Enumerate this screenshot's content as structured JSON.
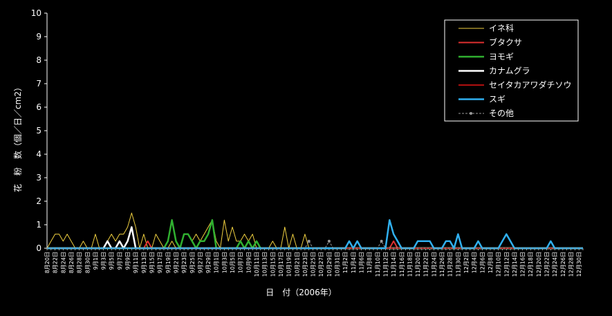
{
  "chart_data": {
    "type": "line",
    "xlabel": "日　付（2006年）",
    "ylabel": "花　粉　数（個／日／cm2）",
    "ylim": [
      0,
      10
    ],
    "yticks": [
      0,
      1,
      2,
      3,
      4,
      5,
      6,
      7,
      8,
      9,
      10
    ],
    "grid": false,
    "legend_position": "top-right",
    "start_date": "8月20日",
    "categories": [
      "8月20日",
      "8月21日",
      "8月22日",
      "8月23日",
      "8月24日",
      "8月25日",
      "8月26日",
      "8月27日",
      "8月28日",
      "8月29日",
      "8月30日",
      "8月31日",
      "9月1日",
      "9月2日",
      "9月3日",
      "9月4日",
      "9月5日",
      "9月6日",
      "9月7日",
      "9月8日",
      "9月9日",
      "9月10日",
      "9月11日",
      "9月12日",
      "9月13日",
      "9月14日",
      "9月15日",
      "9月16日",
      "9月17日",
      "9月18日",
      "9月19日",
      "9月20日",
      "9月21日",
      "9月22日",
      "9月23日",
      "9月24日",
      "9月25日",
      "9月26日",
      "9月27日",
      "9月28日",
      "9月29日",
      "9月30日",
      "10月1日",
      "10月2日",
      "10月3日",
      "10月4日",
      "10月5日",
      "10月6日",
      "10月7日",
      "10月8日",
      "10月9日",
      "10月10日",
      "10月11日",
      "10月12日",
      "10月13日",
      "10月14日",
      "10月15日",
      "10月16日",
      "10月17日",
      "10月18日",
      "10月19日",
      "10月20日",
      "10月21日",
      "10月22日",
      "10月23日",
      "10月24日",
      "10月25日",
      "10月26日",
      "10月27日",
      "10月28日",
      "10月29日",
      "10月30日",
      "10月31日",
      "11月1日",
      "11月2日",
      "11月3日",
      "11月4日",
      "11月5日",
      "11月6日",
      "11月7日",
      "11月8日",
      "11月9日",
      "11月10日",
      "11月11日",
      "11月12日",
      "11月13日",
      "11月14日",
      "11月15日",
      "11月16日",
      "11月17日",
      "11月18日",
      "11月19日",
      "11月20日",
      "11月21日",
      "11月22日",
      "11月23日",
      "11月24日",
      "11月25日",
      "11月26日",
      "11月27日",
      "11月28日",
      "11月29日",
      "11月30日",
      "12月1日",
      "12月2日",
      "12月3日",
      "12月4日",
      "12月5日",
      "12月6日",
      "12月7日",
      "12月8日",
      "12月9日",
      "12月10日",
      "12月11日",
      "12月12日",
      "12月13日",
      "12月14日",
      "12月15日",
      "12月16日",
      "12月17日",
      "12月18日",
      "12月19日",
      "12月20日",
      "12月21日",
      "12月22日",
      "12月23日",
      "12月24日",
      "12月25日",
      "12月26日",
      "12月27日",
      "12月28日",
      "12月29日",
      "12月30日",
      "12月31日"
    ],
    "xtick_labels": [
      "8月20日",
      "8月22日",
      "8月24日",
      "8月26日",
      "8月28日",
      "8月30日",
      "9月1日",
      "9月3日",
      "9月5日",
      "9月7日",
      "9月9日",
      "9月11日",
      "9月13日",
      "9月15日",
      "9月17日",
      "9月19日",
      "9月21日",
      "9月23日",
      "9月25日",
      "9月27日",
      "9月29日",
      "10月1日",
      "10月3日",
      "10月5日",
      "10月7日",
      "10月9日",
      "10月11日",
      "10月13日",
      "10月15日",
      "10月17日",
      "10月19日",
      "10月21日",
      "10月23日",
      "10月25日",
      "10月27日",
      "10月29日",
      "10月31日",
      "11月2日",
      "11月4日",
      "11月6日",
      "11月8日",
      "11月10日",
      "11月12日",
      "11月14日",
      "11月16日",
      "11月18日",
      "11月20日",
      "11月22日",
      "11月24日",
      "11月26日",
      "11月28日",
      "11月30日",
      "12月2日",
      "12月4日",
      "12月6日",
      "12月8日",
      "12月10日",
      "12月12日",
      "12月14日",
      "12月16日",
      "12月18日",
      "12月20日",
      "12月22日",
      "12月24日",
      "12月26日",
      "12月28日",
      "12月30日"
    ],
    "series": [
      {
        "name": "イネ科",
        "color": "#f0d040",
        "width": 1,
        "dash": "",
        "points": [
          [
            "8月20日",
            0
          ],
          [
            "8月21日",
            0.3
          ],
          [
            "8月22日",
            0.6
          ],
          [
            "8月23日",
            0.6
          ],
          [
            "8月24日",
            0.3
          ],
          [
            "8月25日",
            0.6
          ],
          [
            "8月26日",
            0.3
          ],
          [
            "8月27日",
            0
          ],
          [
            "8月28日",
            0
          ],
          [
            "8月29日",
            0.3
          ],
          [
            "8月30日",
            0
          ],
          [
            "8月31日",
            0
          ],
          [
            "9月1日",
            0.6
          ],
          [
            "9月2日",
            0
          ],
          [
            "9月3日",
            0
          ],
          [
            "9月4日",
            0.3
          ],
          [
            "9月5日",
            0.6
          ],
          [
            "9月6日",
            0.3
          ],
          [
            "9月7日",
            0.6
          ],
          [
            "9月8日",
            0.6
          ],
          [
            "9月9日",
            0.9
          ],
          [
            "9月10日",
            1.5
          ],
          [
            "9月11日",
            0.9
          ],
          [
            "9月12日",
            0
          ],
          [
            "9月13日",
            0.6
          ],
          [
            "9月14日",
            0
          ],
          [
            "9月15日",
            0
          ],
          [
            "9月16日",
            0.6
          ],
          [
            "9月17日",
            0.3
          ],
          [
            "9月18日",
            0
          ],
          [
            "9月19日",
            0
          ],
          [
            "9月20日",
            0.3
          ],
          [
            "9月21日",
            0
          ],
          [
            "9月22日",
            0
          ],
          [
            "9月23日",
            0.6
          ],
          [
            "9月24日",
            0.6
          ],
          [
            "9月25日",
            0.3
          ],
          [
            "9月26日",
            0.6
          ],
          [
            "9月27日",
            0.3
          ],
          [
            "9月28日",
            0.6
          ],
          [
            "9月29日",
            0.9
          ],
          [
            "9月30日",
            1.2
          ],
          [
            "10月1日",
            0.3
          ],
          [
            "10月2日",
            0
          ],
          [
            "10月3日",
            1.2
          ],
          [
            "10月4日",
            0.3
          ],
          [
            "10月5日",
            0.9
          ],
          [
            "10月6日",
            0.3
          ],
          [
            "10月7日",
            0.3
          ],
          [
            "10月8日",
            0.6
          ],
          [
            "10月9日",
            0.3
          ],
          [
            "10月10日",
            0.6
          ],
          [
            "10月11日",
            0
          ],
          [
            "10月12日",
            0
          ],
          [
            "10月13日",
            0
          ],
          [
            "10月14日",
            0
          ],
          [
            "10月15日",
            0.3
          ],
          [
            "10月16日",
            0
          ],
          [
            "10月17日",
            0
          ],
          [
            "10月18日",
            0.9
          ],
          [
            "10月19日",
            0
          ],
          [
            "10月20日",
            0.6
          ],
          [
            "10月21日",
            0
          ],
          [
            "10月22日",
            0
          ],
          [
            "10月23日",
            0.6
          ],
          [
            "10月24日",
            0
          ],
          [
            "10月25日",
            0
          ],
          [
            "10月26日",
            0
          ],
          [
            "10月27日",
            0
          ],
          [
            "10月28日",
            0
          ],
          [
            "10月29日",
            0
          ],
          [
            "10月30日",
            0
          ],
          [
            "10月31日",
            0
          ],
          [
            "11月1日",
            0
          ],
          [
            "11月2日",
            0
          ],
          [
            "11月3日",
            0
          ],
          [
            "11月4日",
            0
          ],
          [
            "11月5日",
            0
          ],
          [
            "11月6日",
            0
          ],
          [
            "11月7日",
            0
          ],
          [
            "11月8日",
            0
          ],
          [
            "11月9日",
            0
          ],
          [
            "11月10日",
            0
          ],
          [
            "11月11日",
            0
          ],
          [
            "11月12日",
            0
          ],
          [
            "11月13日",
            0
          ],
          [
            "11月14日",
            0
          ],
          [
            "11月15日",
            0
          ],
          [
            "12月31日",
            0
          ]
        ]
      },
      {
        "name": "ブタクサ",
        "color": "#e03030",
        "width": 2,
        "dash": "",
        "points": [
          [
            "8月20日",
            0
          ],
          [
            "9月13日",
            0
          ],
          [
            "9月14日",
            0.3
          ],
          [
            "9月15日",
            0
          ],
          [
            "11月13日",
            0
          ],
          [
            "11月14日",
            0.3
          ],
          [
            "11月15日",
            0
          ],
          [
            "12月31日",
            0
          ]
        ]
      },
      {
        "name": "ヨモギ",
        "color": "#30b030",
        "width": 2.5,
        "dash": "",
        "points": [
          [
            "8月20日",
            0
          ],
          [
            "9月18日",
            0
          ],
          [
            "9月19日",
            0.3
          ],
          [
            "9月20日",
            1.2
          ],
          [
            "9月21日",
            0.3
          ],
          [
            "9月22日",
            0
          ],
          [
            "9月23日",
            0.6
          ],
          [
            "9月24日",
            0.6
          ],
          [
            "9月25日",
            0.3
          ],
          [
            "9月26日",
            0
          ],
          [
            "9月27日",
            0.3
          ],
          [
            "9月28日",
            0.3
          ],
          [
            "9月29日",
            0.6
          ],
          [
            "9月30日",
            1.2
          ],
          [
            "10月1日",
            0
          ],
          [
            "10月2日",
            0
          ],
          [
            "10月3日",
            0
          ],
          [
            "10月4日",
            0
          ],
          [
            "10月5日",
            0
          ],
          [
            "10月6日",
            0
          ],
          [
            "10月7日",
            0.3
          ],
          [
            "10月8日",
            0
          ],
          [
            "10月9日",
            0.3
          ],
          [
            "10月10日",
            0
          ],
          [
            "10月11日",
            0.3
          ],
          [
            "10月12日",
            0
          ],
          [
            "12月31日",
            0
          ]
        ]
      },
      {
        "name": "カナムグラ",
        "color": "#ffffff",
        "width": 2.5,
        "dash": "",
        "points": [
          [
            "8月20日",
            0
          ],
          [
            "9月3日",
            0
          ],
          [
            "9月4日",
            0.3
          ],
          [
            "9月5日",
            0
          ],
          [
            "9月6日",
            0
          ],
          [
            "9月7日",
            0.3
          ],
          [
            "9月8日",
            0
          ],
          [
            "9月9日",
            0.3
          ],
          [
            "9月10日",
            0.9
          ],
          [
            "9月11日",
            0
          ],
          [
            "12月31日",
            0
          ]
        ]
      },
      {
        "name": "セイタカアワダチソウ",
        "color": "#b01010",
        "width": 2,
        "dash": "",
        "points": [
          [
            "8月20日",
            0
          ],
          [
            "12月31日",
            0
          ]
        ]
      },
      {
        "name": "スギ",
        "color": "#30b0f0",
        "width": 2.5,
        "dash": "",
        "points": [
          [
            "8月20日",
            0
          ],
          [
            "11月2日",
            0
          ],
          [
            "11月3日",
            0.3
          ],
          [
            "11月4日",
            0
          ],
          [
            "11月5日",
            0.3
          ],
          [
            "11月6日",
            0
          ],
          [
            "11月12日",
            0
          ],
          [
            "11月13日",
            1.2
          ],
          [
            "11月14日",
            0.6
          ],
          [
            "11月15日",
            0.3
          ],
          [
            "11月16日",
            0
          ],
          [
            "11月19日",
            0
          ],
          [
            "11月20日",
            0.3
          ],
          [
            "11月21日",
            0.3
          ],
          [
            "11月22日",
            0.3
          ],
          [
            "11月23日",
            0.3
          ],
          [
            "11月24日",
            0
          ],
          [
            "11月25日",
            0
          ],
          [
            "11月26日",
            0
          ],
          [
            "11月27日",
            0.3
          ],
          [
            "11月28日",
            0.3
          ],
          [
            "11月29日",
            0
          ],
          [
            "11月30日",
            0.6
          ],
          [
            "12月1日",
            0
          ],
          [
            "12月4日",
            0
          ],
          [
            "12月5日",
            0.3
          ],
          [
            "12月6日",
            0
          ],
          [
            "12月10日",
            0
          ],
          [
            "12月11日",
            0.3
          ],
          [
            "12月12日",
            0.6
          ],
          [
            "12月13日",
            0.3
          ],
          [
            "12月14日",
            0
          ],
          [
            "12月22日",
            0
          ],
          [
            "12月23日",
            0.3
          ],
          [
            "12月24日",
            0
          ],
          [
            "12月31日",
            0
          ]
        ]
      },
      {
        "name": "その他",
        "color": "#9a9a9a",
        "width": 1,
        "dash": "3,2",
        "marker": true,
        "points": [
          [
            "8月20日",
            0
          ],
          [
            "10月23日",
            0
          ],
          [
            "10月24日",
            0.3
          ],
          [
            "10月25日",
            0
          ],
          [
            "10月28日",
            0
          ],
          [
            "10月29日",
            0.3
          ],
          [
            "10月30日",
            0
          ],
          [
            "11月10日",
            0
          ],
          [
            "11月11日",
            0.3
          ],
          [
            "11月12日",
            0
          ],
          [
            "12月31日",
            0
          ]
        ]
      }
    ]
  }
}
